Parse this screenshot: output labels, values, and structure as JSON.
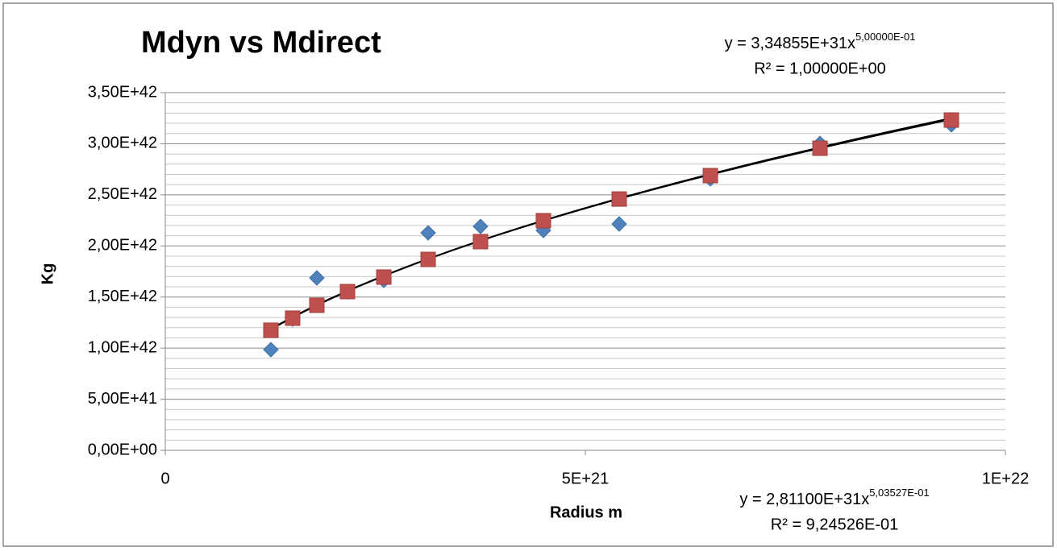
{
  "chart_data": {
    "type": "scatter",
    "title": "Mdyn vs Mdirect",
    "x_label": "Radius m",
    "y_label": "Kg",
    "xlim": [
      0,
      1e+22
    ],
    "xticks": [
      0,
      {
        "value": 5e+21,
        "label": "5E+21"
      },
      {
        "value": 1e+22,
        "label": "1E+22"
      }
    ],
    "ylim": [
      0,
      3.5e+42
    ],
    "yticks": [
      {
        "value": 0,
        "label": "0,00E+00"
      },
      {
        "value": 5e+41,
        "label": "5,00E+41"
      },
      {
        "value": 1e+42,
        "label": "1,00E+42"
      },
      {
        "value": 1.5e+42,
        "label": "1,50E+42"
      },
      {
        "value": 2e+42,
        "label": "2,00E+42"
      },
      {
        "value": 2.5e+42,
        "label": "2,50E+42"
      },
      {
        "value": 3e+42,
        "label": "3,00E+42"
      },
      {
        "value": 3.5e+42,
        "label": "3,50E+42"
      }
    ],
    "grid": true,
    "y_minor_divisions": 5,
    "series": [
      {
        "name": "Mdyn",
        "color": "#4f81bd",
        "marker": "diamond",
        "x": [
          1.257e+21,
          1.516e+21,
          1.804e+21,
          2.169e+21,
          2.601e+21,
          3.129e+21,
          3.752e+21,
          4.501e+21,
          5.403e+21,
          6.488e+21,
          7.793e+21,
          9.357e+21
        ],
        "values": [
          9.85e+41,
          1.285e+42,
          1.687e+42,
          1.55e+42,
          1.663e+42,
          2.128e+42,
          2.191e+42,
          2.152e+42,
          2.215e+42,
          2.656e+42,
          3.003e+42,
          3.185e+42
        ]
      },
      {
        "name": "Mdirect",
        "color": "#c0504d",
        "marker": "square",
        "x": [
          1.257e+21,
          1.516e+21,
          1.804e+21,
          2.169e+21,
          2.601e+21,
          3.129e+21,
          3.752e+21,
          4.501e+21,
          5.403e+21,
          6.488e+21,
          7.793e+21,
          9.357e+21
        ],
        "values": [
          1.175e+42,
          1.293e+42,
          1.419e+42,
          1.553e+42,
          1.695e+42,
          1.868e+42,
          2.042e+42,
          2.247e+42,
          2.459e+42,
          2.688e+42,
          2.956e+42,
          3.232e+42
        ]
      }
    ],
    "trendlines": [
      {
        "equation": "y = 3,34855E+31x",
        "exponent_label": "5,00000E-01",
        "r2": "R² = 1,00000E+00",
        "coefficient": 3.34855e+31,
        "exponent": 0.5,
        "series": 1
      },
      {
        "equation": "y = 2,81100E+31x",
        "exponent_label": "5,03527E-01",
        "r2": "R² = 9,24526E-01",
        "coefficient": 2.811e+31,
        "exponent": 0.503527,
        "series": 0
      }
    ]
  }
}
